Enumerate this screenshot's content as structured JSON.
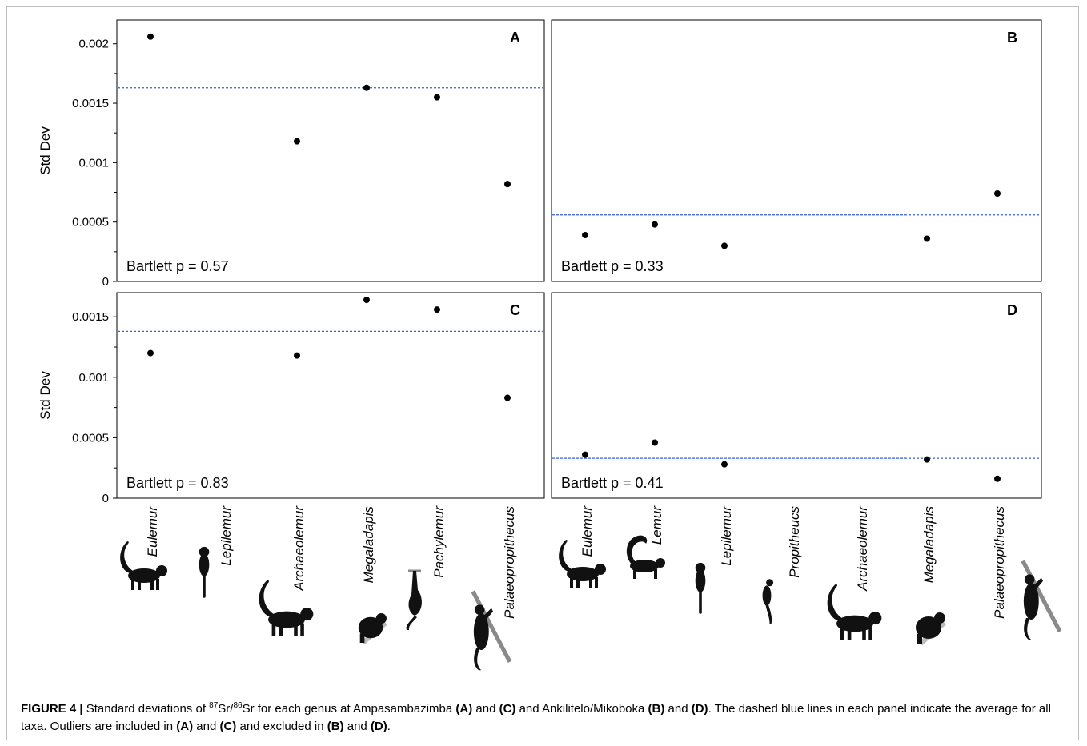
{
  "figure": {
    "caption": {
      "label": "FIGURE 4 |",
      "t1": " Standard deviations of ",
      "sup87": "87",
      "sr1": "Sr/",
      "sup86": "86",
      "t2": "Sr for each genus at Ampasambazimba ",
      "refA1": "(A)",
      "and1": " and ",
      "refC1": "(C)",
      "t3": " and Ankilitelo/Mikoboka ",
      "refB1": "(B)",
      "and2": " and ",
      "refD1": "(D)",
      "t4": ". The dashed blue lines in each panel indicate the average for all taxa. Outliers are included in ",
      "refA2": "(A)",
      "and3": " and ",
      "refC2": "(C)",
      "t5": " and excluded in ",
      "refB2": "(B)",
      "and4": " and ",
      "refD2": "(D)",
      "t6": "."
    },
    "colors": {
      "mean_line": "#3a5fd9",
      "points": "#000000",
      "silhouette": "#111111",
      "branch": "#8a8a8a"
    }
  },
  "chart_data": [
    {
      "type": "scatter",
      "panel": "A",
      "ylabel": "Std Dev",
      "ylim": [
        0,
        0.0022
      ],
      "yticks": [
        0,
        0.0005,
        0.001,
        0.0015,
        0.002
      ],
      "ytick_labels": [
        "0",
        "0.0005",
        "0.001",
        "0.0015",
        "0.002"
      ],
      "categories": [
        "Eulemur",
        "Lepilemur",
        "Archaeolemur",
        "Megaladapis",
        "Pachylemur",
        "Palaeopropithecus"
      ],
      "values": [
        0.00206,
        null,
        0.00118,
        0.00163,
        0.00155,
        0.00082
      ],
      "mean": 0.00163,
      "annotation": "Bartlett p = 0.57"
    },
    {
      "type": "scatter",
      "panel": "B",
      "ylim": [
        0,
        0.0022
      ],
      "categories": [
        "Eulemur",
        "Lemur",
        "Lepilemur",
        "Propitheucs",
        "Archaeolemur",
        "Megaladapis",
        "Palaeopropithecus"
      ],
      "values": [
        0.00039,
        0.00048,
        0.0003,
        null,
        null,
        0.00036,
        0.00074
      ],
      "mean": 0.00056,
      "annotation": "Bartlett p = 0.33"
    },
    {
      "type": "scatter",
      "panel": "C",
      "ylabel": "Std Dev",
      "ylim": [
        0,
        0.0017
      ],
      "yticks": [
        0,
        0.0005,
        0.001,
        0.0015
      ],
      "ytick_labels": [
        "0",
        "0.0005",
        "0.001",
        "0.0015"
      ],
      "categories": [
        "Eulemur",
        "Lepilemur",
        "Archaeolemur",
        "Megaladapis",
        "Pachylemur",
        "Palaeopropithecus"
      ],
      "values": [
        0.0012,
        null,
        0.00118,
        0.00164,
        0.00156,
        0.00083
      ],
      "mean": 0.00138,
      "annotation": "Bartlett p = 0.83"
    },
    {
      "type": "scatter",
      "panel": "D",
      "ylim": [
        0,
        0.0017
      ],
      "categories": [
        "Eulemur",
        "Lemur",
        "Lepilemur",
        "Propitheucs",
        "Archaeolemur",
        "Megaladapis",
        "Palaeopropithecus"
      ],
      "values": [
        0.00036,
        0.00046,
        0.00028,
        null,
        null,
        0.00032,
        0.00016
      ],
      "mean": 0.00033,
      "annotation": "Bartlett p = 0.41"
    }
  ],
  "silhouettes": {
    "left": [
      {
        "genus": "Eulemur",
        "kind": "quadruped-tail"
      },
      {
        "genus": "Lepilemur",
        "kind": "clinger"
      },
      {
        "genus": "Archaeolemur",
        "kind": "quadruped-tail"
      },
      {
        "genus": "Megaladapis",
        "kind": "clinger-bulky"
      },
      {
        "genus": "Pachylemur",
        "kind": "hanger"
      },
      {
        "genus": "Palaeopropithecus",
        "kind": "sloth-branch"
      }
    ],
    "right": [
      {
        "genus": "Eulemur",
        "kind": "quadruped-tail"
      },
      {
        "genus": "Lemur",
        "kind": "ringtail"
      },
      {
        "genus": "Lepilemur",
        "kind": "clinger"
      },
      {
        "genus": "Propitheucs",
        "kind": "sifaka"
      },
      {
        "genus": "Archaeolemur",
        "kind": "quadruped-tail"
      },
      {
        "genus": "Megaladapis",
        "kind": "clinger-bulky"
      },
      {
        "genus": "Palaeopropithecus",
        "kind": "sloth-branch"
      }
    ]
  }
}
